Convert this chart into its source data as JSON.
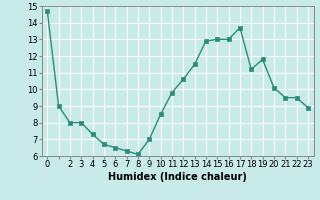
{
  "x": [
    0,
    1,
    2,
    3,
    4,
    5,
    6,
    7,
    8,
    9,
    10,
    11,
    12,
    13,
    14,
    15,
    16,
    17,
    18,
    19,
    20,
    21,
    22,
    23
  ],
  "y": [
    14.7,
    9.0,
    8.0,
    8.0,
    7.3,
    6.7,
    6.5,
    6.3,
    6.1,
    7.0,
    8.5,
    9.8,
    10.6,
    11.5,
    12.9,
    13.0,
    13.0,
    13.7,
    11.2,
    11.8,
    10.1,
    9.5,
    9.5,
    8.9
  ],
  "line_color": "#2d8b7a",
  "marker_color": "#2d8b7a",
  "bg_color": "#c8eae8",
  "grid_color": "#ffffff",
  "xlabel": "Humidex (Indice chaleur)",
  "ylim": [
    6,
    15
  ],
  "xlim": [
    -0.5,
    23.5
  ],
  "yticks": [
    6,
    7,
    8,
    9,
    10,
    11,
    12,
    13,
    14,
    15
  ],
  "xtick_labels": [
    "0",
    "",
    "2",
    "3",
    "4",
    "5",
    "6",
    "7",
    "8",
    "9",
    "10",
    "11",
    "12",
    "13",
    "14",
    "15",
    "16",
    "17",
    "18",
    "19",
    "20",
    "21",
    "22",
    "23"
  ],
  "xlabel_fontsize": 7,
  "tick_fontsize": 6,
  "marker_size": 2.5,
  "line_width": 1.0
}
